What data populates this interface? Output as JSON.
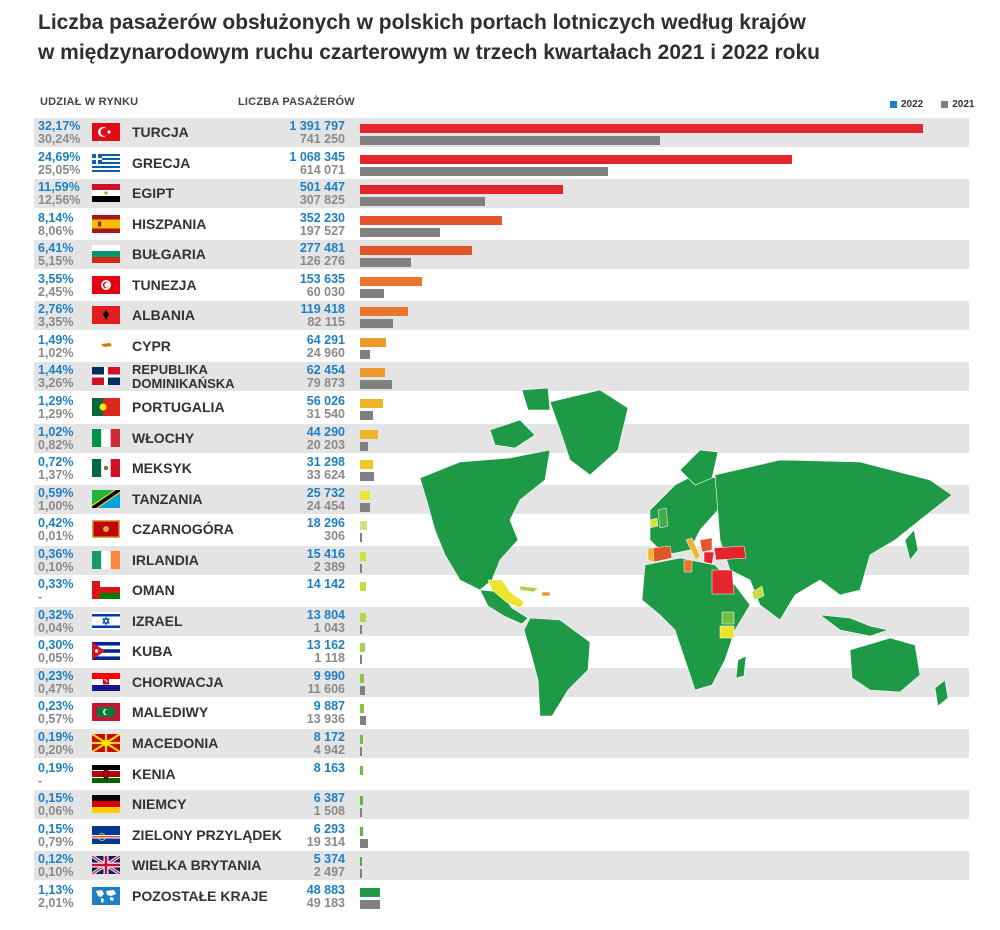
{
  "title_line1": "Liczba pasażerów obsłużonych w polskich portach lotniczych według krajów",
  "title_line2": "w międzynarodowym ruchu czarterowym w trzech kwartałach 2021 i 2022 roku",
  "header_share": "UDZIAŁ W RYNKU",
  "header_passengers": "LICZBA PASAŻERÓW",
  "legend": [
    {
      "label": "2022",
      "color": "#1f7fc4"
    },
    {
      "label": "2021",
      "color": "#808080"
    }
  ],
  "colors": {
    "bar2021": "#808080",
    "rowShade": "#e4e4e4",
    "mapGreen": "#1e9a47"
  },
  "chart_data": {
    "type": "bar",
    "orientation": "horizontal",
    "categories": [
      "TURCJA",
      "GRECJA",
      "EGIPT",
      "HISZPANIA",
      "BUŁGARIA",
      "TUNEZJA",
      "ALBANIA",
      "CYPR",
      "REPUBLIKA DOMINIKAŃSKA",
      "PORTUGALIA",
      "WŁOCHY",
      "MEKSYK",
      "TANZANIA",
      "CZARNOGÓRA",
      "IRLANDIA",
      "OMAN",
      "IZRAEL",
      "KUBA",
      "CHORWACJA",
      "MALEDIWY",
      "MACEDONIA",
      "KENIA",
      "NIEMCY",
      "ZIELONY PRZYLĄDEK",
      "WIELKA BRYTANIA",
      "POZOSTAŁE KRAJE"
    ],
    "series": [
      {
        "name": "2022",
        "values": [
          1391797,
          1068345,
          501447,
          352230,
          277481,
          153635,
          119418,
          64291,
          62454,
          56026,
          44290,
          31298,
          25732,
          18296,
          15416,
          14142,
          13804,
          13162,
          9990,
          9887,
          8172,
          8163,
          6387,
          6293,
          5374,
          48883
        ],
        "labels": [
          "1 391 797",
          "1 068 345",
          "501 447",
          "352 230",
          "277 481",
          "153 635",
          "119 418",
          "64 291",
          "62 454",
          "56 026",
          "44 290",
          "31 298",
          "25 732",
          "18 296",
          "15 416",
          "14 142",
          "13 804",
          "13 162",
          "9 990",
          "9 887",
          "8 172",
          "8 163",
          "6 387",
          "6 293",
          "5 374",
          "48 883"
        ],
        "share": [
          "32,17%",
          "24,69%",
          "11,59%",
          "8,14%",
          "6,41%",
          "3,55%",
          "2,76%",
          "1,49%",
          "1,44%",
          "1,29%",
          "1,02%",
          "0,72%",
          "0,59%",
          "0,42%",
          "0,36%",
          "0,33%",
          "0,32%",
          "0,30%",
          "0,23%",
          "0,23%",
          "0,19%",
          "0,19%",
          "0,15%",
          "0,15%",
          "0,12%",
          "1,13%"
        ],
        "colors": [
          "#e4252b",
          "#e4252b",
          "#e4252b",
          "#e2552a",
          "#e2552a",
          "#e8762b",
          "#e8762b",
          "#eb9a2a",
          "#eb9a2a",
          "#eeb627",
          "#eeb627",
          "#ecc823",
          "#ece42e",
          "#d7e07a",
          "#cfe23a",
          "#c6dd40",
          "#b2d94a",
          "#a8d34a",
          "#8cc63f",
          "#8cc63f",
          "#6fbf43",
          "#6fbf43",
          "#5bb646",
          "#5bb646",
          "#43ad48",
          "#1e9a47"
        ]
      },
      {
        "name": "2021",
        "values": [
          741250,
          614071,
          307825,
          197527,
          126276,
          60030,
          82115,
          24960,
          79873,
          31540,
          20203,
          33624,
          24454,
          306,
          2389,
          null,
          1043,
          1118,
          11606,
          13936,
          4942,
          null,
          1508,
          19314,
          2497,
          49183
        ],
        "labels": [
          "741 250",
          "614 071",
          "307 825",
          "197 527",
          "126 276",
          "60 030",
          "82 115",
          "24 960",
          "79 873",
          "31 540",
          "20 203",
          "33 624",
          "24 454",
          "306",
          "2 389",
          "",
          "1 043",
          "1 118",
          "11 606",
          "13 936",
          "4 942",
          "",
          "1 508",
          "19 314",
          "2 497",
          "49 183"
        ],
        "share": [
          "30,24%",
          "25,05%",
          "12,56%",
          "8,06%",
          "5,15%",
          "2,45%",
          "3,35%",
          "1,02%",
          "3,26%",
          "1,29%",
          "0,82%",
          "1,37%",
          "1,00%",
          "0,01%",
          "0,10%",
          "-",
          "0,04%",
          "0,05%",
          "0,47%",
          "0,57%",
          "0,20%",
          "-",
          "0,06%",
          "0,79%",
          "0,10%",
          "2,01%"
        ]
      }
    ],
    "xlim": [
      0,
      1391797
    ]
  },
  "flags": [
    "turkey",
    "greece",
    "egypt",
    "spain",
    "bulgaria",
    "tunisia",
    "albania",
    "cyprus",
    "dominican-republic",
    "portugal",
    "italy",
    "mexico",
    "tanzania",
    "montenegro",
    "ireland",
    "oman",
    "israel",
    "cuba",
    "croatia",
    "maldives",
    "macedonia",
    "kenya",
    "germany",
    "cape-verde",
    "united-kingdom",
    "world"
  ]
}
